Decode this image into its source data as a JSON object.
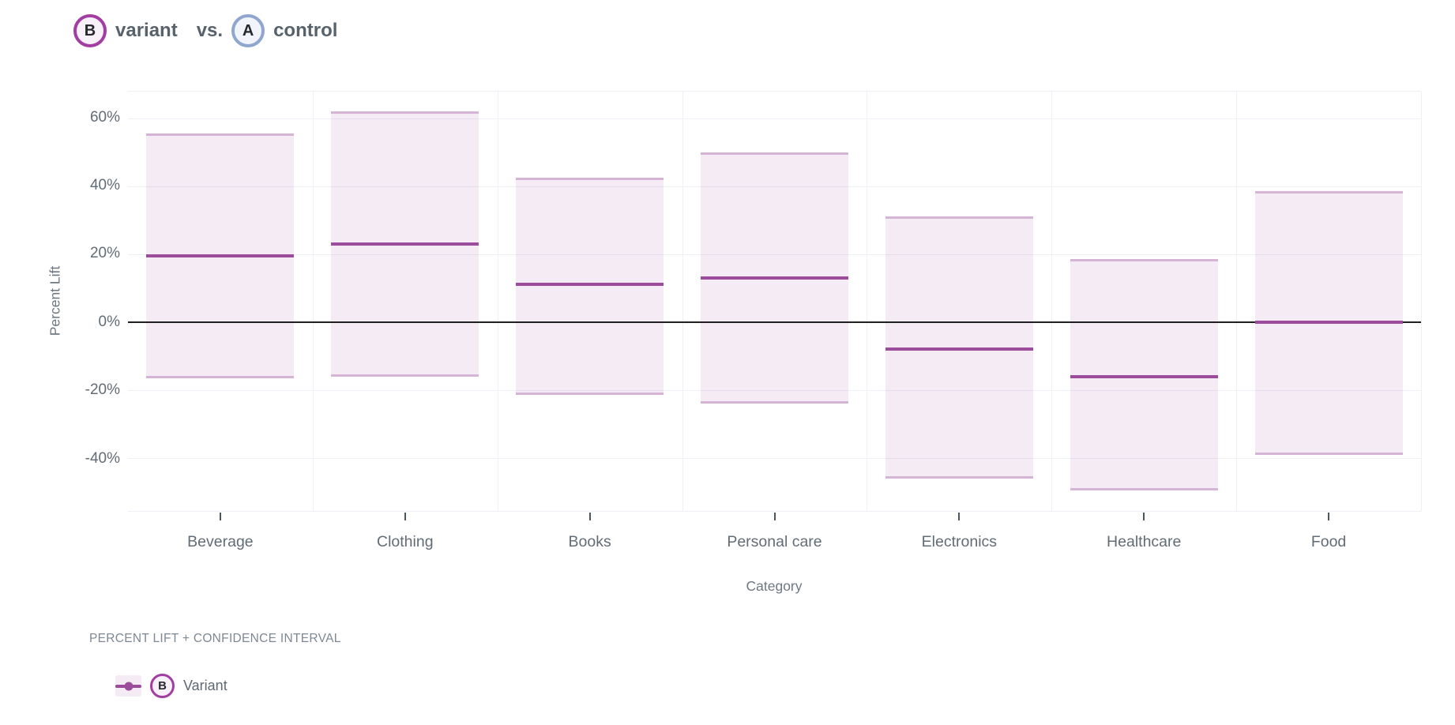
{
  "header": {
    "variant_badge": "B",
    "variant_label": "variant",
    "vs_label": "vs.",
    "control_badge": "A",
    "control_label": "control"
  },
  "chart_data": {
    "type": "bar",
    "subtype": "lift-with-confidence-interval",
    "title": "B variant vs. A control",
    "xlabel": "Category",
    "ylabel": "Percent Lift",
    "categories": [
      "Beverage",
      "Clothing",
      "Books",
      "Personal care",
      "Electronics",
      "Healthcare",
      "Food"
    ],
    "series": [
      {
        "name": "Variant",
        "badge": "B",
        "lift_pct": [
          19.5,
          23,
          11,
          13,
          -8,
          -16,
          0
        ],
        "ci_low_pct": [
          -16.5,
          -16,
          -21.5,
          -24,
          -46,
          -49.5,
          -39
        ],
        "ci_high_pct": [
          55.5,
          62,
          42.5,
          50,
          31,
          18.5,
          38.5
        ]
      }
    ],
    "y_ticks": [
      {
        "label": "60%",
        "value": 60
      },
      {
        "label": "40%",
        "value": 40
      },
      {
        "label": "20%",
        "value": 20
      },
      {
        "label": "0%",
        "value": 0
      },
      {
        "label": "-20%",
        "value": -20
      },
      {
        "label": "-40%",
        "value": -40
      }
    ],
    "ylim": [
      -55.6,
      67.8
    ],
    "zero_line_value": 0,
    "grid": true,
    "legend_position": "bottom-left",
    "colors": {
      "band_fill": "rgba(155,77,155,0.11)",
      "band_edge": "rgba(155,77,155,0.35)",
      "lift_line": "#9b4d9b",
      "zero_line": "#1f1f1f",
      "grid_line": "#edf1f6",
      "variant_ring": "#a23da2",
      "variant_fill": "#f9f1f9",
      "control_ring": "#91a6ce",
      "control_fill": "#f1f4fa"
    }
  },
  "legend": {
    "title": "PERCENT LIFT + CONFIDENCE INTERVAL",
    "items": [
      {
        "badge": "B",
        "label": "Variant"
      }
    ]
  }
}
